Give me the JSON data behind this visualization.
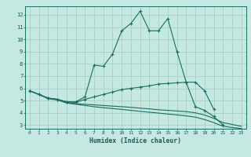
{
  "xlabel": "Humidex (Indice chaleur)",
  "bg_color": "#c5e8e2",
  "grid_color": "#a0ccbb",
  "line_color": "#1a6e60",
  "xlim_min": -0.5,
  "xlim_max": 23.5,
  "ylim_min": 2.7,
  "ylim_max": 12.7,
  "xticks": [
    0,
    1,
    2,
    3,
    4,
    5,
    6,
    7,
    8,
    9,
    10,
    11,
    12,
    13,
    14,
    15,
    16,
    17,
    18,
    19,
    20,
    21,
    22,
    23
  ],
  "yticks": [
    3,
    4,
    5,
    6,
    7,
    8,
    9,
    10,
    11,
    12
  ],
  "c1_x": [
    0,
    1,
    2,
    3,
    4,
    5,
    6,
    7,
    8,
    9,
    10,
    11,
    12,
    13,
    14,
    15,
    16,
    17,
    18,
    19,
    20,
    21
  ],
  "c1_y": [
    5.8,
    5.5,
    5.2,
    5.1,
    4.9,
    4.9,
    5.3,
    7.9,
    7.8,
    8.8,
    10.7,
    11.3,
    12.3,
    10.7,
    10.7,
    11.7,
    9.0,
    6.5,
    4.5,
    4.2,
    3.7,
    3.0
  ],
  "c2_x": [
    0,
    1,
    2,
    3,
    4,
    5,
    6,
    7,
    8,
    9,
    10,
    11,
    12,
    13,
    14,
    15,
    16,
    17,
    18,
    19,
    20
  ],
  "c2_y": [
    5.8,
    5.5,
    5.2,
    5.1,
    4.9,
    4.85,
    5.1,
    5.3,
    5.5,
    5.7,
    5.9,
    6.0,
    6.1,
    6.2,
    6.35,
    6.4,
    6.45,
    6.5,
    6.5,
    5.8,
    4.3
  ],
  "c3_x": [
    0,
    1,
    2,
    3,
    4,
    5,
    6,
    7,
    8,
    9,
    10,
    11,
    12,
    13,
    14,
    15,
    16,
    17,
    18,
    19,
    20,
    21,
    22,
    23
  ],
  "c3_y": [
    5.8,
    5.5,
    5.2,
    5.1,
    4.85,
    4.75,
    4.7,
    4.65,
    4.6,
    4.55,
    4.5,
    4.45,
    4.38,
    4.32,
    4.25,
    4.2,
    4.15,
    4.1,
    4.0,
    3.82,
    3.55,
    3.2,
    3.05,
    2.9
  ],
  "c4_x": [
    0,
    1,
    2,
    3,
    4,
    5,
    6,
    7,
    8,
    9,
    10,
    11,
    12,
    13,
    14,
    15,
    16,
    17,
    18,
    19,
    20,
    21,
    22,
    23
  ],
  "c4_y": [
    5.8,
    5.5,
    5.15,
    5.05,
    4.8,
    4.7,
    4.6,
    4.5,
    4.42,
    4.35,
    4.28,
    4.2,
    4.12,
    4.05,
    3.98,
    3.9,
    3.83,
    3.75,
    3.65,
    3.45,
    3.2,
    2.9,
    2.8,
    2.72
  ]
}
